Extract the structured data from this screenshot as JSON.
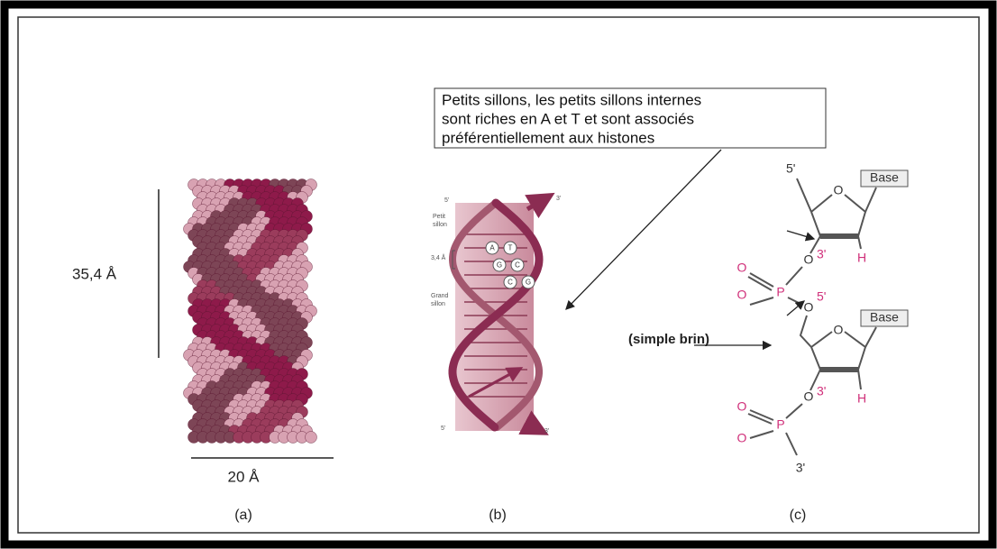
{
  "panel_a": {
    "height": "35,4 Å",
    "width": "20 Å",
    "caption": "(a)"
  },
  "panel_b": {
    "caption": "(b)",
    "end_labels": [
      "5'",
      "3'",
      "5'",
      "3'"
    ],
    "minor_groove": [
      "Petit",
      "sillon"
    ],
    "rise": "3,4 Å",
    "major_groove": [
      "Grand",
      "sillon"
    ],
    "base_pairs": [
      [
        "A",
        "T"
      ],
      [
        "G",
        "C"
      ],
      [
        "C",
        "G"
      ]
    ]
  },
  "callout": [
    "Petits sillons, les petits sillons internes",
    "sont riches en A et T et sont associés",
    "préférentiellement aux histones"
  ],
  "panel_c": {
    "caption": "(c)",
    "strand": "(simple brin)",
    "top": {
      "c5": "5'",
      "ring_o": "O",
      "base": "Base",
      "h": "H",
      "o3": "O",
      "o3_label": "3'",
      "p": "P",
      "o_double": "O",
      "o_single": "O",
      "o5": "O",
      "o5_label": "5'"
    },
    "bottom": {
      "ring_o": "O",
      "base": "Base",
      "h": "H",
      "o3": "O",
      "o3_label": "3'",
      "p": "P",
      "o_double": "O",
      "o_single": "O",
      "end": "3'"
    }
  }
}
